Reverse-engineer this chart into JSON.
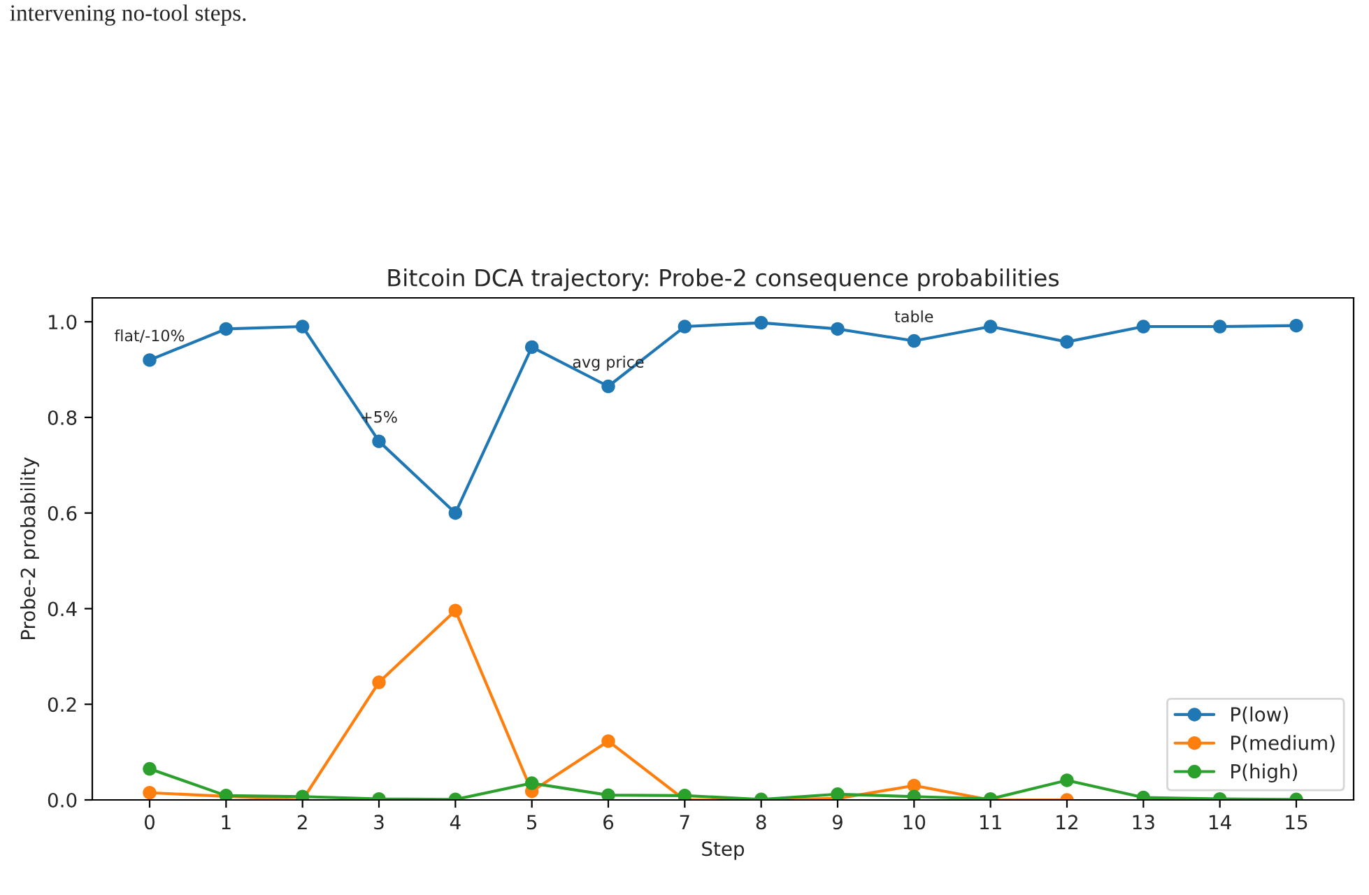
{
  "chart_data": {
    "type": "line",
    "title": "Bitcoin DCA trajectory: Probe-2 consequence probabilities",
    "xlabel": "Step",
    "ylabel": "Probe-2 probability",
    "x": [
      0,
      1,
      2,
      3,
      4,
      5,
      6,
      7,
      8,
      9,
      10,
      11,
      12,
      13,
      14,
      15
    ],
    "series": [
      {
        "name": "P(low)",
        "color": "#1f77b4",
        "values": [
          0.92,
          0.985,
          0.99,
          0.75,
          0.6,
          0.947,
          0.865,
          0.99,
          0.998,
          0.985,
          0.96,
          0.99,
          0.958,
          0.99,
          0.99,
          0.992
        ]
      },
      {
        "name": "P(medium)",
        "color": "#ff7f0e",
        "values": [
          0.015,
          null,
          0.0,
          0.246,
          0.396,
          0.018,
          0.123,
          0.0,
          0.0,
          0.003,
          0.03,
          0.0,
          0.0,
          null,
          null,
          null
        ]
      },
      {
        "name": "P(high)",
        "color": "#2ca02c",
        "values": [
          0.065,
          0.009,
          0.007,
          0.002,
          0.001,
          0.035,
          0.01,
          0.009,
          0.001,
          0.012,
          0.007,
          0.002,
          0.041,
          0.005,
          0.002,
          0.001
        ]
      }
    ],
    "annotations": [
      {
        "text": "flat/-10%",
        "x": 0,
        "y": 0.92
      },
      {
        "text": "+5%",
        "x": 3,
        "y": 0.75
      },
      {
        "text": "avg price",
        "x": 6,
        "y": 0.865
      },
      {
        "text": "table",
        "x": 10,
        "y": 0.96
      },
      "intervening no-tool steps."
    ],
    "xlim": [
      -0.75,
      15.75
    ],
    "ylim": [
      0,
      1.05
    ],
    "xticks": [
      0,
      1,
      2,
      3,
      4,
      5,
      6,
      7,
      8,
      9,
      10,
      11,
      12,
      13,
      14,
      15
    ],
    "yticks": [
      {
        "value": 0,
        "label": "0.0"
      },
      {
        "value": 0.2,
        "label": "0.2"
      },
      {
        "value": 0.4,
        "label": "0.4"
      },
      {
        "value": 0.6,
        "label": "0.6"
      },
      {
        "value": 0.8,
        "label": "0.8"
      },
      {
        "value": 1.0,
        "label": "1.0"
      }
    ],
    "grid": false,
    "legend": "lower right",
    "marker": "circle",
    "line_style": "solid"
  }
}
